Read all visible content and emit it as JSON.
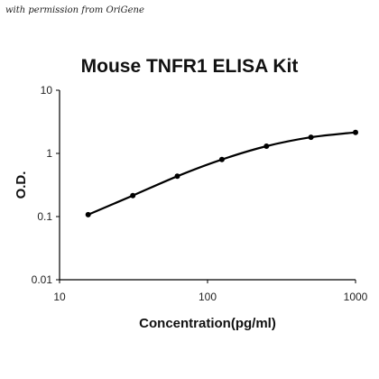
{
  "credit": "with permission from OriGene",
  "chart_data": {
    "type": "line",
    "title": "Mouse TNFR1 ELISA Kit",
    "xlabel": "Concentration(pg/ml)",
    "ylabel": "O.D.",
    "xscale": "log",
    "yscale": "log",
    "xlim": [
      10,
      1000
    ],
    "ylim": [
      0.01,
      10
    ],
    "xticks": [
      "10",
      "100",
      "1000"
    ],
    "yticks": [
      "0.01",
      "0.1",
      "1",
      "10"
    ],
    "grid": false,
    "series": [
      {
        "points": [
          {
            "x": 15.6,
            "y": 0.107
          },
          {
            "x": 31.25,
            "y": 0.215
          },
          {
            "x": 62.5,
            "y": 0.435
          },
          {
            "x": 125,
            "y": 0.8
          },
          {
            "x": 250,
            "y": 1.3
          },
          {
            "x": 500,
            "y": 1.8
          },
          {
            "x": 1000,
            "y": 2.15
          }
        ]
      }
    ],
    "colors": {
      "line": "#000000",
      "marker": "#000000"
    }
  }
}
